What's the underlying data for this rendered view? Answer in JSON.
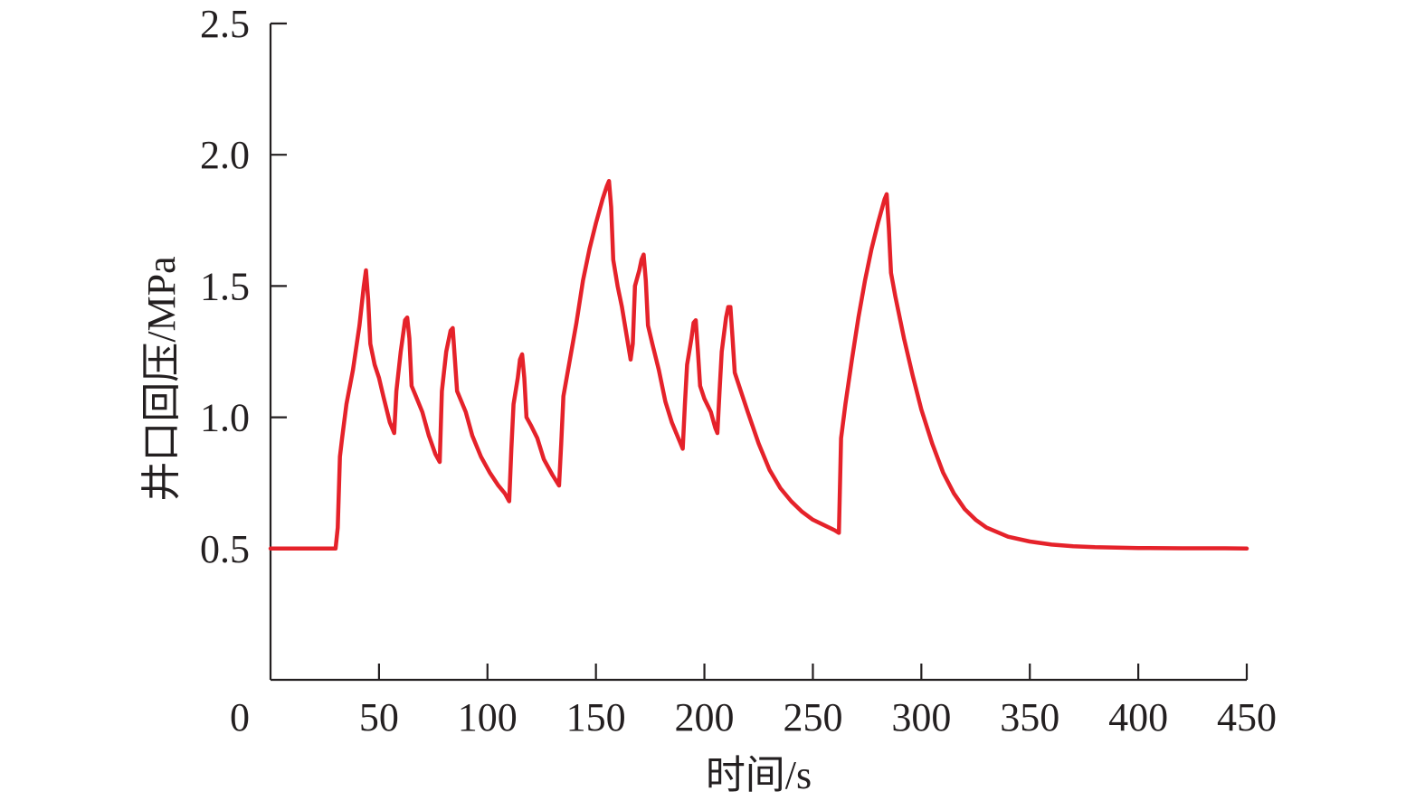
{
  "chart_data": {
    "type": "line",
    "title": "",
    "xlabel": "时间/s",
    "ylabel": "井口回压/MPa",
    "xlim": [
      0,
      450
    ],
    "ylim": [
      0,
      2.5
    ],
    "x_ticks": [
      0,
      50,
      100,
      150,
      200,
      250,
      300,
      350,
      400,
      450
    ],
    "x_tick_labels": [
      "0",
      "50",
      "100",
      "150",
      "200",
      "250",
      "300",
      "350",
      "400",
      "450"
    ],
    "y_ticks": [
      0.5,
      1.0,
      1.5,
      2.0,
      2.5
    ],
    "y_tick_labels": [
      "0.5",
      "1.0",
      "1.5",
      "2.0",
      "2.5"
    ],
    "grid": false,
    "legend": "none",
    "series": [
      {
        "color": "#e5222a",
        "points": [
          [
            0,
            0.5
          ],
          [
            30,
            0.5
          ],
          [
            31,
            0.58
          ],
          [
            32,
            0.85
          ],
          [
            33,
            0.92
          ],
          [
            35,
            1.05
          ],
          [
            38,
            1.18
          ],
          [
            41,
            1.35
          ],
          [
            43,
            1.5
          ],
          [
            44,
            1.56
          ],
          [
            45,
            1.45
          ],
          [
            46,
            1.28
          ],
          [
            48,
            1.2
          ],
          [
            50,
            1.15
          ],
          [
            52,
            1.08
          ],
          [
            55,
            0.98
          ],
          [
            57,
            0.94
          ],
          [
            58,
            1.1
          ],
          [
            60,
            1.25
          ],
          [
            62,
            1.37
          ],
          [
            63,
            1.38
          ],
          [
            64,
            1.3
          ],
          [
            65,
            1.12
          ],
          [
            67,
            1.08
          ],
          [
            70,
            1.02
          ],
          [
            73,
            0.93
          ],
          [
            76,
            0.86
          ],
          [
            78,
            0.83
          ],
          [
            79,
            1.1
          ],
          [
            81,
            1.25
          ],
          [
            83,
            1.33
          ],
          [
            84,
            1.34
          ],
          [
            85,
            1.22
          ],
          [
            86,
            1.1
          ],
          [
            88,
            1.06
          ],
          [
            90,
            1.02
          ],
          [
            93,
            0.93
          ],
          [
            97,
            0.85
          ],
          [
            101,
            0.79
          ],
          [
            105,
            0.74
          ],
          [
            108,
            0.71
          ],
          [
            110,
            0.68
          ],
          [
            111,
            0.88
          ],
          [
            112,
            1.05
          ],
          [
            114,
            1.15
          ],
          [
            115,
            1.22
          ],
          [
            116,
            1.24
          ],
          [
            117,
            1.15
          ],
          [
            118,
            1.0
          ],
          [
            120,
            0.97
          ],
          [
            123,
            0.92
          ],
          [
            126,
            0.84
          ],
          [
            130,
            0.78
          ],
          [
            133,
            0.74
          ],
          [
            134,
            0.9
          ],
          [
            135,
            1.08
          ],
          [
            138,
            1.22
          ],
          [
            141,
            1.36
          ],
          [
            144,
            1.52
          ],
          [
            147,
            1.64
          ],
          [
            150,
            1.74
          ],
          [
            153,
            1.83
          ],
          [
            155,
            1.88
          ],
          [
            156,
            1.9
          ],
          [
            157,
            1.8
          ],
          [
            158,
            1.6
          ],
          [
            160,
            1.5
          ],
          [
            162,
            1.42
          ],
          [
            164,
            1.32
          ],
          [
            166,
            1.22
          ],
          [
            167,
            1.28
          ],
          [
            168,
            1.5
          ],
          [
            170,
            1.56
          ],
          [
            171,
            1.6
          ],
          [
            172,
            1.62
          ],
          [
            173,
            1.52
          ],
          [
            174,
            1.35
          ],
          [
            176,
            1.28
          ],
          [
            179,
            1.18
          ],
          [
            182,
            1.06
          ],
          [
            185,
            0.98
          ],
          [
            188,
            0.92
          ],
          [
            190,
            0.88
          ],
          [
            191,
            1.05
          ],
          [
            192,
            1.2
          ],
          [
            194,
            1.3
          ],
          [
            195,
            1.36
          ],
          [
            196,
            1.37
          ],
          [
            197,
            1.25
          ],
          [
            198,
            1.12
          ],
          [
            200,
            1.07
          ],
          [
            203,
            1.02
          ],
          [
            205,
            0.96
          ],
          [
            206,
            0.94
          ],
          [
            207,
            1.1
          ],
          [
            208,
            1.25
          ],
          [
            210,
            1.38
          ],
          [
            211,
            1.42
          ],
          [
            212,
            1.42
          ],
          [
            213,
            1.3
          ],
          [
            214,
            1.17
          ],
          [
            216,
            1.12
          ],
          [
            220,
            1.02
          ],
          [
            225,
            0.9
          ],
          [
            230,
            0.8
          ],
          [
            235,
            0.73
          ],
          [
            240,
            0.68
          ],
          [
            245,
            0.64
          ],
          [
            250,
            0.61
          ],
          [
            255,
            0.59
          ],
          [
            260,
            0.57
          ],
          [
            262,
            0.56
          ],
          [
            263,
            0.92
          ],
          [
            265,
            1.05
          ],
          [
            268,
            1.22
          ],
          [
            271,
            1.38
          ],
          [
            274,
            1.52
          ],
          [
            277,
            1.64
          ],
          [
            280,
            1.74
          ],
          [
            283,
            1.83
          ],
          [
            284,
            1.85
          ],
          [
            285,
            1.72
          ],
          [
            286,
            1.55
          ],
          [
            288,
            1.46
          ],
          [
            292,
            1.3
          ],
          [
            296,
            1.16
          ],
          [
            300,
            1.03
          ],
          [
            305,
            0.9
          ],
          [
            310,
            0.79
          ],
          [
            315,
            0.71
          ],
          [
            320,
            0.65
          ],
          [
            325,
            0.61
          ],
          [
            330,
            0.58
          ],
          [
            340,
            0.545
          ],
          [
            350,
            0.527
          ],
          [
            360,
            0.515
          ],
          [
            370,
            0.509
          ],
          [
            380,
            0.505
          ],
          [
            400,
            0.502
          ],
          [
            420,
            0.501
          ],
          [
            440,
            0.501
          ],
          [
            450,
            0.5
          ]
        ]
      }
    ]
  }
}
